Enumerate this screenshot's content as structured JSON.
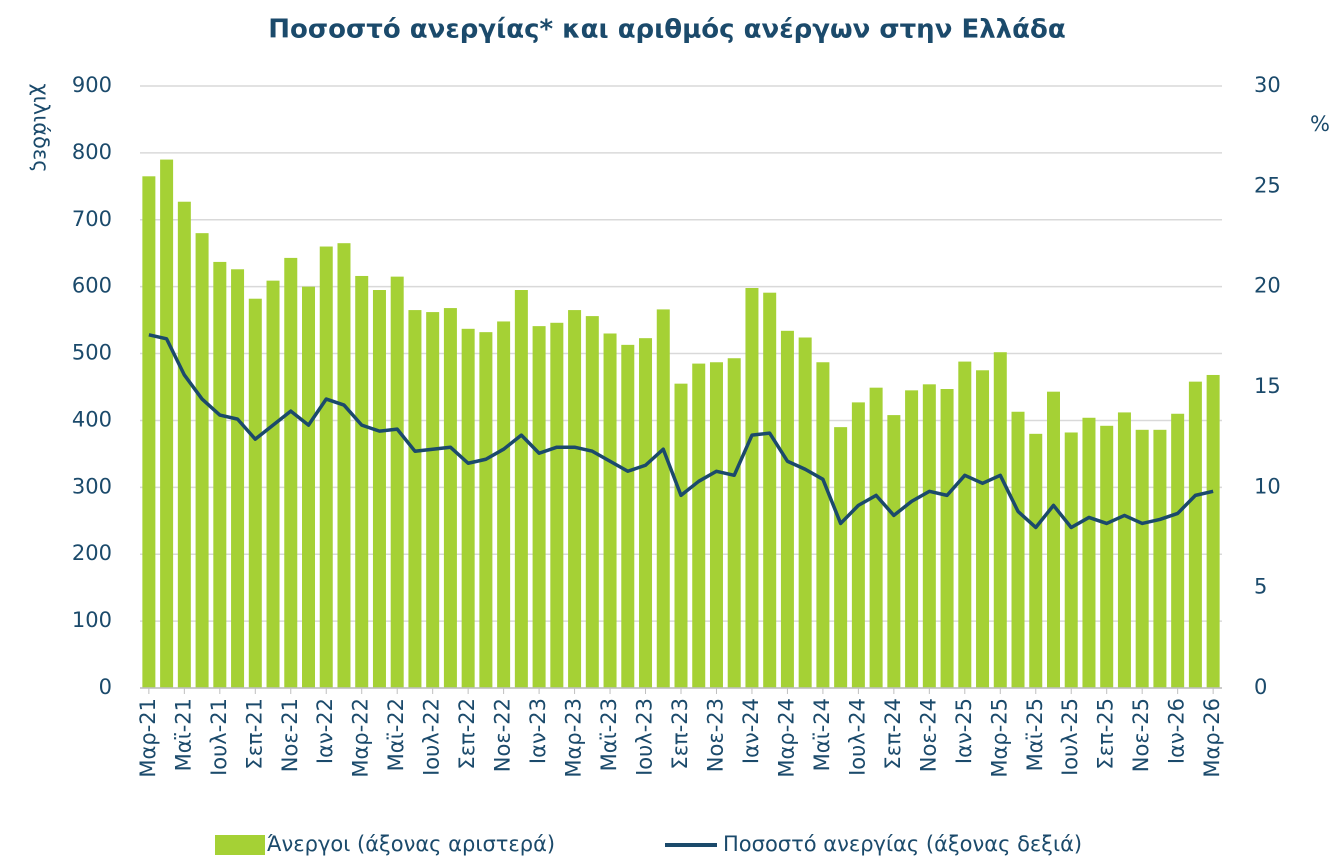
{
  "chart_data": {
    "type": "bar-line",
    "title": "Ποσοστό ανεργίας* και αριθμός ανέργων στην Ελλάδα",
    "y_label": "χιλιάδες",
    "y2_label": "%",
    "categories": [
      "Μαρ-21",
      null,
      "Μαϊ-21",
      null,
      "Ιουλ-21",
      null,
      "Σεπ-21",
      null,
      "Νοε-21",
      null,
      "Ιαν-22",
      null,
      "Μαρ-22",
      null,
      "Μαϊ-22",
      null,
      "Ιουλ-22",
      null,
      "Σεπ-22",
      null,
      "Νοε-22",
      null,
      "Ιαν-23",
      null,
      "Μαρ-23",
      null,
      "Μαϊ-23",
      null,
      "Ιουλ-23",
      null,
      "Σεπ-23",
      null,
      "Νοε-23",
      null,
      "Ιαν-24",
      null,
      "Μαρ-24",
      null,
      "Μαϊ-24",
      null,
      "Ιουλ-24",
      null,
      "Σεπ-24",
      null,
      "Νοε-24",
      null,
      "Ιαν-25",
      null,
      "Μαρ-25",
      null,
      "Μαϊ-25",
      null,
      "Ιουλ-25",
      null,
      "Σεπ-25",
      null,
      "Νοε-25",
      null,
      "Ιαν-26",
      null,
      "Μαρ-26"
    ],
    "series": [
      {
        "name": "Άνεργοι (άξονας αριστερά)",
        "color": "#a5d135",
        "kind": "bar",
        "values": [
          765,
          790,
          727,
          680,
          637,
          626,
          582,
          609,
          643,
          600,
          660,
          665,
          616,
          595,
          615,
          565,
          562,
          568,
          537,
          532,
          548,
          595,
          541,
          546,
          565,
          556,
          530,
          513,
          523,
          566,
          455,
          485,
          487,
          493,
          598,
          591,
          534,
          524,
          487,
          390,
          427,
          449,
          408,
          445,
          454,
          447,
          488,
          475,
          502,
          413,
          380,
          443,
          382,
          404,
          392,
          412,
          386,
          386,
          410,
          458,
          468
        ]
      },
      {
        "name": "Ποσοστό ανεργίας (άξονας δεξιά)",
        "color": "#1b4a6b",
        "kind": "line",
        "axis": "y2",
        "values": [
          17.6,
          17.4,
          15.6,
          14.4,
          13.6,
          13.4,
          12.4,
          13.1,
          13.8,
          13.1,
          14.4,
          14.1,
          13.1,
          12.8,
          12.9,
          11.8,
          11.9,
          12.0,
          11.2,
          11.4,
          11.9,
          12.6,
          11.7,
          12.0,
          12.0,
          11.8,
          11.3,
          10.8,
          11.1,
          11.9,
          9.6,
          10.3,
          10.8,
          10.6,
          12.6,
          12.7,
          11.3,
          10.9,
          10.4,
          8.2,
          9.1,
          9.6,
          8.6,
          9.3,
          9.8,
          9.6,
          10.6,
          10.2,
          10.6,
          8.8,
          8.0,
          9.1,
          8.0,
          8.5,
          8.2,
          8.6,
          8.2,
          8.4,
          8.7,
          9.6,
          9.8
        ]
      }
    ],
    "ylim": [
      0,
      900
    ],
    "yticks": [
      0,
      100,
      200,
      300,
      400,
      500,
      600,
      700,
      800,
      900
    ],
    "y2lim": [
      0,
      30
    ],
    "y2ticks": [
      0,
      5,
      10,
      15,
      20,
      25,
      30
    ],
    "grid": true
  }
}
